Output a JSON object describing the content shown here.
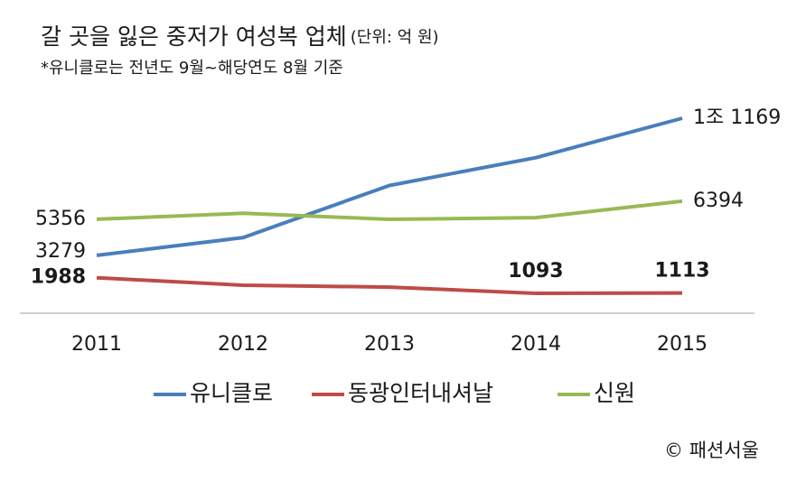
{
  "chart_data": {
    "type": "line",
    "title": "갈 곳을 잃은 중저가 여성복 업체",
    "unit": "(단위: 억 원)",
    "subtitle": "*유니클로는 전년도 9월~해당연도 8월 기준",
    "source": "© 패션서울",
    "categories": [
      "2011",
      "2012",
      "2013",
      "2014",
      "2015"
    ],
    "ylim": [
      0,
      12000
    ],
    "series": [
      {
        "name": "유니클로",
        "color": "#4a7ebb",
        "values": [
          3279,
          4300,
          7300,
          8900,
          11169
        ],
        "value_labels": [
          "3279",
          null,
          null,
          null,
          "1조 1169"
        ]
      },
      {
        "name": "동광인터내셔날",
        "color": "#be4b48",
        "values": [
          1988,
          1560,
          1450,
          1093,
          1113
        ],
        "value_labels": [
          "1988",
          null,
          null,
          "1093",
          "1113"
        ]
      },
      {
        "name": "신원",
        "color": "#98b954",
        "values": [
          5356,
          5700,
          5350,
          5450,
          6394
        ],
        "value_labels": [
          "5356",
          null,
          null,
          null,
          "6394"
        ]
      }
    ]
  }
}
